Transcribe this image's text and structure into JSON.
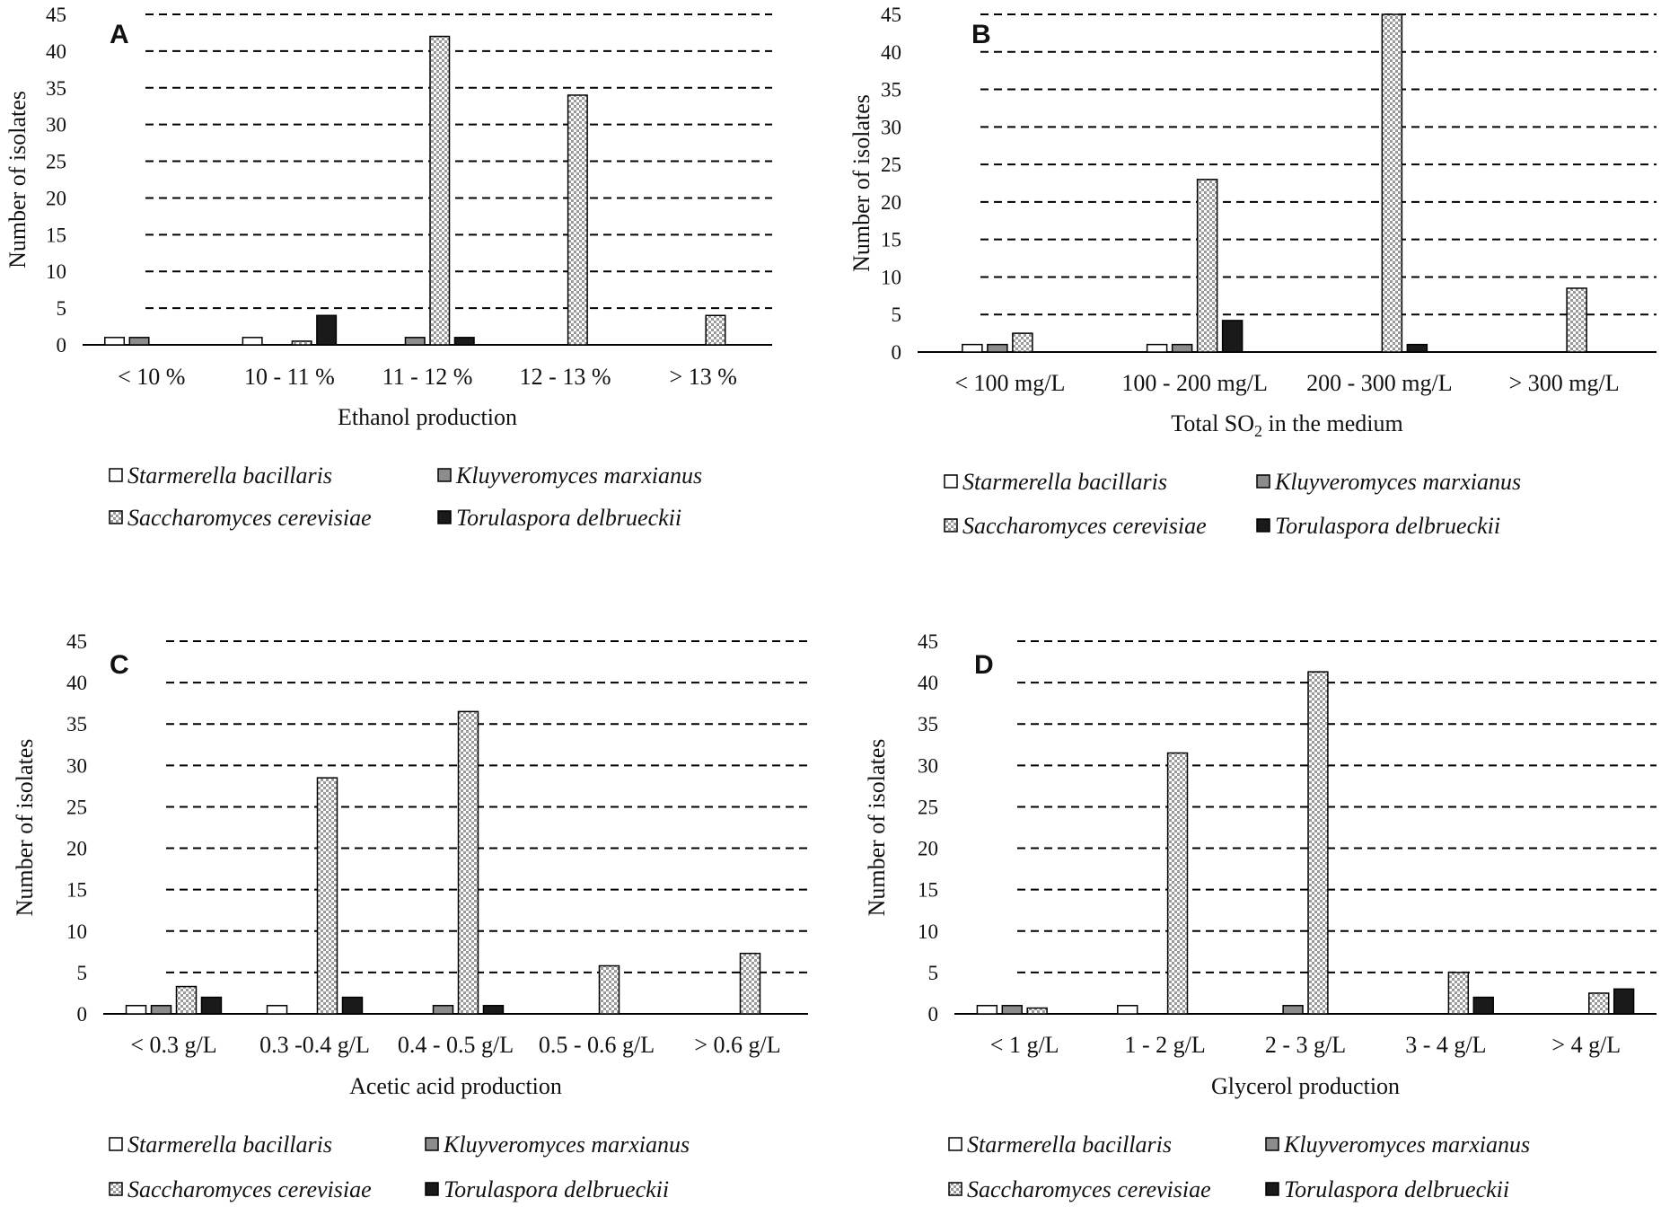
{
  "figure": {
    "species": [
      "Starmerella bacillaris",
      "Kluyveromyces marxianus",
      "Saccharomyces cerevisiae",
      "Torulaspora delbrueckii"
    ],
    "colors": {
      "Starmerella bacillaris": "#ffffff",
      "Kluyveromyces marxianus": "#8c8c8c",
      "Saccharomyces cerevisiae": "checker",
      "Torulaspora delbrueckii": "#1a1a1a"
    }
  },
  "chart_data": [
    {
      "type": "bar",
      "panel": "A",
      "ylabel": "Number of isolates",
      "xlabel": "Ethanol production",
      "ylim": [
        0,
        45
      ],
      "yticks": [
        "0",
        "5",
        "10",
        "15",
        "20",
        "25",
        "30",
        "35",
        "40",
        "45"
      ],
      "categories": [
        "< 10 %",
        "10 - 11 %",
        "11 - 12 %",
        "12 - 13 %",
        "> 13 %"
      ],
      "series": [
        {
          "name": "Starmerella bacillaris",
          "values": [
            1,
            1,
            0,
            0,
            0
          ]
        },
        {
          "name": "Kluyveromyces marxianus",
          "values": [
            1,
            0,
            1,
            0,
            0
          ]
        },
        {
          "name": "Saccharomyces cerevisiae",
          "values": [
            0,
            0.5,
            42,
            34,
            4
          ]
        },
        {
          "name": "Torulaspora delbrueckii",
          "values": [
            0,
            4,
            1,
            0,
            0
          ]
        }
      ],
      "legend": [
        "Starmerella bacillaris",
        "Kluyveromyces marxianus",
        "Saccharomyces cerevisiae",
        "Torulaspora delbrueckii"
      ],
      "grid": true
    },
    {
      "type": "bar",
      "panel": "B",
      "ylabel": "Number of isolates",
      "xlabel_main": "Total SO",
      "xlabel_sub": "2",
      "xlabel_rest": " in the medium",
      "ylim": [
        0,
        45
      ],
      "yticks": [
        "0",
        "5",
        "10",
        "15",
        "20",
        "25",
        "30",
        "35",
        "40",
        "45"
      ],
      "categories": [
        "< 100 mg/L",
        "100 - 200 mg/L",
        "200 - 300 mg/L",
        "> 300 mg/L"
      ],
      "series": [
        {
          "name": "Starmerella bacillaris",
          "values": [
            1,
            1,
            0,
            0
          ]
        },
        {
          "name": "Kluyveromyces marxianus",
          "values": [
            1,
            1,
            0,
            0
          ]
        },
        {
          "name": "Saccharomyces cerevisiae",
          "values": [
            2.5,
            23,
            45,
            8.5
          ]
        },
        {
          "name": "Torulaspora delbrueckii",
          "values": [
            0,
            4.2,
            1,
            0
          ]
        }
      ],
      "legend": [
        "Starmerella bacillaris",
        "Kluyveromyces marxianus",
        "Saccharomyces cerevisiae",
        "Torulaspora delbrueckii"
      ],
      "grid": true
    },
    {
      "type": "bar",
      "panel": "C",
      "ylabel": "Number of isolates",
      "xlabel": "Acetic acid production",
      "ylim": [
        0,
        45
      ],
      "yticks": [
        "0",
        "5",
        "10",
        "15",
        "20",
        "25",
        "30",
        "35",
        "40",
        "45"
      ],
      "categories": [
        "< 0.3 g/L",
        "0.3 -0.4 g/L",
        "0.4 - 0.5 g/L",
        "0.5 - 0.6 g/L",
        "> 0.6 g/L"
      ],
      "series": [
        {
          "name": "Starmerella bacillaris",
          "values": [
            1,
            1,
            0,
            0,
            0
          ]
        },
        {
          "name": "Kluyveromyces marxianus",
          "values": [
            1,
            0,
            1,
            0,
            0
          ]
        },
        {
          "name": "Saccharomyces cerevisiae",
          "values": [
            3.3,
            28.5,
            36.5,
            5.8,
            7.3
          ]
        },
        {
          "name": "Torulaspora delbrueckii",
          "values": [
            2,
            2,
            1,
            0,
            0
          ]
        }
      ],
      "legend": [
        "Starmerella bacillaris",
        "Kluyveromyces marxianus",
        "Saccharomyces cerevisiae",
        "Torulaspora delbrueckii"
      ],
      "grid": true
    },
    {
      "type": "bar",
      "panel": "D",
      "ylabel": "Number of isolates",
      "xlabel": "Glycerol production",
      "ylim": [
        0,
        45
      ],
      "yticks": [
        "0",
        "5",
        "10",
        "15",
        "20",
        "25",
        "30",
        "35",
        "40",
        "45"
      ],
      "categories": [
        "< 1 g/L",
        "1 - 2 g/L",
        "2 - 3 g/L",
        "3 - 4 g/L",
        "> 4 g/L"
      ],
      "series": [
        {
          "name": "Starmerella bacillaris",
          "values": [
            1,
            1,
            0,
            0,
            0
          ]
        },
        {
          "name": "Kluyveromyces marxianus",
          "values": [
            1,
            0,
            1,
            0,
            0
          ]
        },
        {
          "name": "Saccharomyces cerevisiae",
          "values": [
            0.7,
            31.5,
            41.3,
            5,
            2.5
          ]
        },
        {
          "name": "Torulaspora delbrueckii",
          "values": [
            0,
            0,
            0,
            2,
            3
          ]
        }
      ],
      "legend": [
        "Starmerella bacillaris",
        "Kluyveromyces marxianus",
        "Saccharomyces cerevisiae",
        "Torulaspora delbrueckii"
      ],
      "grid": true
    }
  ]
}
